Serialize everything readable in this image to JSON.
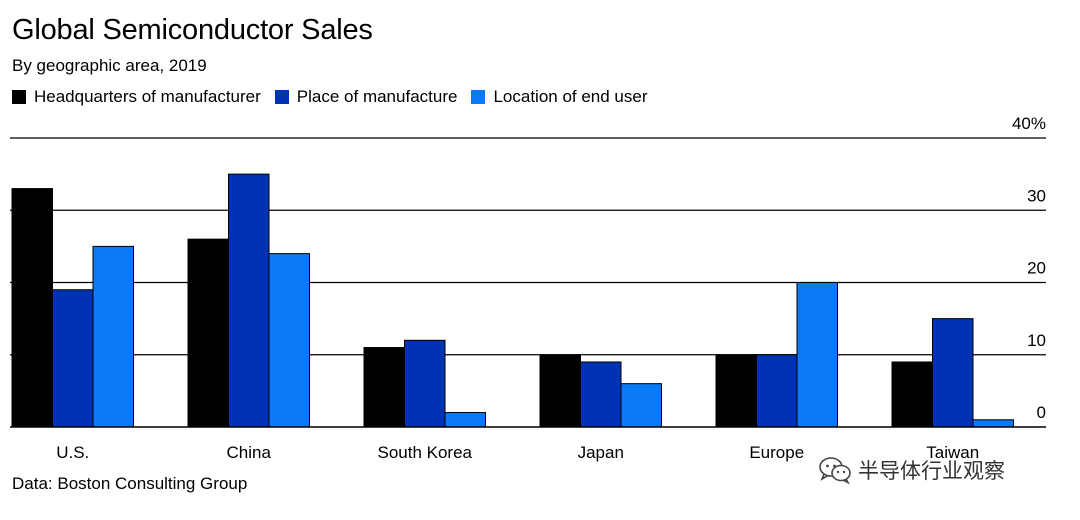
{
  "chart_data": {
    "type": "bar",
    "title": "Global Semiconductor Sales",
    "subtitle": "By geographic area, 2019",
    "categories": [
      "U.S.",
      "China",
      "South Korea",
      "Japan",
      "Europe",
      "Taiwan"
    ],
    "series": [
      {
        "name": "Headquarters of manufacturer",
        "color": "#000000",
        "values": [
          33,
          26,
          11,
          10,
          10,
          9
        ]
      },
      {
        "name": "Place of manufacture",
        "color": "#0033B3",
        "values": [
          19,
          35,
          12,
          9,
          10,
          15
        ]
      },
      {
        "name": "Location of end user",
        "color": "#0A7AF5",
        "values": [
          25,
          24,
          2,
          6,
          20,
          1
        ]
      }
    ],
    "yticks": [
      "0",
      "10",
      "20",
      "30",
      "40%"
    ],
    "ylim": [
      0,
      40
    ],
    "grid": true,
    "yaxis_position": "right",
    "legend_position": "top-left",
    "source": "Data: Boston Consulting Group"
  },
  "watermark": {
    "text": "半导体行业观察",
    "icon": "wechat-icon"
  }
}
